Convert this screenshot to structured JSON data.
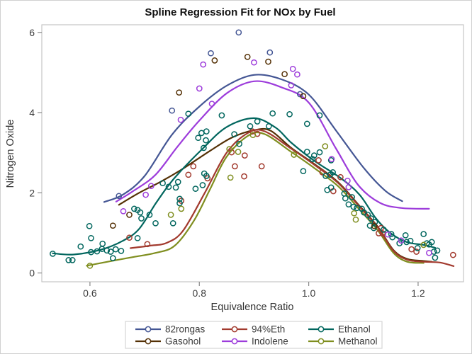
{
  "title": "Spline Regression Fit for NOx by Fuel",
  "x_axis": {
    "label": "Equivalence Ratio",
    "tick_labels": [
      "0.6",
      "0.8",
      "1.0",
      "1.2"
    ],
    "tick_values": [
      0.6,
      0.8,
      1.0,
      1.2
    ],
    "range": [
      0.512,
      1.283
    ]
  },
  "y_axis": {
    "label": "Nitrogen Oxide",
    "tick_labels": [
      "0",
      "2",
      "4",
      "6"
    ],
    "tick_values": [
      0,
      2,
      4,
      6
    ],
    "range": [
      -0.22,
      6.19
    ]
  },
  "legend": {
    "position": "bottom-center",
    "rows": 2,
    "columns": 3,
    "entries": [
      "82rongas",
      "94%Eth",
      "Ethanol",
      "Gasohol",
      "Indolene",
      "Methanol"
    ]
  },
  "colors": {
    "background": "#ffffff",
    "frame": "#c6c6c6",
    "tick": "#8a8a8a",
    "tick_text": "#3c3c3c",
    "axis_label_text": "#333333",
    "title_text": "#111111",
    "legend_border": "#d6d6d6"
  },
  "chart_data": {
    "type": "scatter",
    "subtype": "scatter-with-spline-fit",
    "title": "Spline Regression Fit for NOx by Fuel",
    "xlabel": "Equivalence Ratio",
    "ylabel": "Nitrogen Oxide",
    "xlim": [
      0.512,
      1.283
    ],
    "ylim": [
      -0.22,
      6.19
    ],
    "grid": false,
    "legend_position": "bottom",
    "series": [
      {
        "name": "82rongas",
        "color": "#445694",
        "points": [
          [
            0.653,
            1.92
          ],
          [
            0.75,
            4.05
          ],
          [
            0.821,
            5.48
          ],
          [
            0.872,
            6.0
          ],
          [
            0.929,
            5.5
          ],
          [
            0.984,
            4.46
          ]
        ],
        "fit": [
          [
            0.626,
            1.77
          ],
          [
            0.66,
            1.95
          ],
          [
            0.7,
            2.42
          ],
          [
            0.75,
            3.45
          ],
          [
            0.8,
            4.15
          ],
          [
            0.85,
            4.67
          ],
          [
            0.9,
            4.94
          ],
          [
            0.95,
            4.83
          ],
          [
            1.0,
            4.45
          ],
          [
            1.05,
            3.55
          ],
          [
            1.1,
            2.63
          ],
          [
            1.14,
            2.05
          ],
          [
            1.171,
            1.79
          ]
        ]
      },
      {
        "name": "94%Eth",
        "color": "#A23A2E",
        "points": [
          [
            0.672,
            0.88
          ],
          [
            0.705,
            0.72
          ],
          [
            0.767,
            1.8
          ],
          [
            0.78,
            2.45
          ],
          [
            0.789,
            2.66
          ],
          [
            0.815,
            2.36
          ],
          [
            0.859,
            3.01
          ],
          [
            0.865,
            2.66
          ],
          [
            0.882,
            2.41
          ],
          [
            0.883,
            2.93
          ],
          [
            0.897,
            3.53
          ],
          [
            0.906,
            3.47
          ],
          [
            0.914,
            2.66
          ],
          [
            1.018,
            2.81
          ],
          [
            1.025,
            2.51
          ],
          [
            1.045,
            2.04
          ],
          [
            1.058,
            2.39
          ],
          [
            1.128,
            0.99
          ],
          [
            1.132,
            1.12
          ],
          [
            1.135,
            0.99
          ],
          [
            1.188,
            0.59
          ],
          [
            1.197,
            0.53
          ],
          [
            1.264,
            0.45
          ]
        ],
        "fit": [
          [
            0.674,
            0.62
          ],
          [
            0.71,
            0.68
          ],
          [
            0.74,
            0.75
          ],
          [
            0.77,
            1.05
          ],
          [
            0.81,
            2.0
          ],
          [
            0.85,
            3.0
          ],
          [
            0.89,
            3.5
          ],
          [
            0.92,
            3.53
          ],
          [
            0.968,
            3.1
          ],
          [
            1.01,
            2.7
          ],
          [
            1.054,
            2.24
          ],
          [
            1.093,
            1.65
          ],
          [
            1.127,
            1.12
          ],
          [
            1.155,
            0.55
          ],
          [
            1.18,
            0.33
          ],
          [
            1.21,
            0.28
          ],
          [
            1.24,
            0.26
          ],
          [
            1.265,
            0.17
          ]
        ]
      },
      {
        "name": "Ethanol",
        "color": "#01665E",
        "points": [
          [
            0.532,
            0.48
          ],
          [
            0.561,
            0.32
          ],
          [
            0.568,
            0.32
          ],
          [
            0.583,
            0.66
          ],
          [
            0.599,
            1.17
          ],
          [
            0.602,
            0.52
          ],
          [
            0.602,
            0.87
          ],
          [
            0.613,
            0.54
          ],
          [
            0.622,
            0.6
          ],
          [
            0.623,
            0.73
          ],
          [
            0.631,
            0.56
          ],
          [
            0.638,
            0.53
          ],
          [
            0.642,
            0.37
          ],
          [
            0.647,
            0.59
          ],
          [
            0.657,
            0.55
          ],
          [
            0.681,
            1.6
          ],
          [
            0.687,
            0.87
          ],
          [
            0.687,
            1.57
          ],
          [
            0.692,
            1.51
          ],
          [
            0.694,
            1.36
          ],
          [
            0.709,
            1.45
          ],
          [
            0.72,
            1.24
          ],
          [
            0.733,
            2.24
          ],
          [
            0.744,
            2.15
          ],
          [
            0.752,
            1.24
          ],
          [
            0.757,
            2.13
          ],
          [
            0.761,
            2.27
          ],
          [
            0.764,
            1.74
          ],
          [
            0.764,
            1.85
          ],
          [
            0.78,
            3.97
          ],
          [
            0.793,
            2.1
          ],
          [
            0.798,
            3.37
          ],
          [
            0.804,
            3.49
          ],
          [
            0.806,
            2.19
          ],
          [
            0.808,
            3.12
          ],
          [
            0.809,
            2.48
          ],
          [
            0.812,
            3.31
          ],
          [
            0.813,
            2.42
          ],
          [
            0.813,
            3.53
          ],
          [
            0.841,
            3.93
          ],
          [
            0.864,
            3.46
          ],
          [
            0.873,
            3.22
          ],
          [
            0.893,
            3.66
          ],
          [
            0.906,
            3.78
          ],
          [
            0.927,
            3.66
          ],
          [
            0.934,
            3.98
          ],
          [
            0.965,
            3.96
          ],
          [
            0.99,
            2.54
          ],
          [
            0.997,
            3.02
          ],
          [
            0.997,
            3.72
          ],
          [
            1.007,
            2.84
          ],
          [
            1.01,
            2.93
          ],
          [
            1.02,
            3.01
          ],
          [
            1.02,
            3.93
          ],
          [
            1.031,
            2.42
          ],
          [
            1.034,
            2.07
          ],
          [
            1.039,
            2.45
          ],
          [
            1.041,
            2.13
          ],
          [
            1.041,
            2.81
          ],
          [
            1.044,
            2.51
          ],
          [
            1.065,
            1.98
          ],
          [
            1.067,
            1.86
          ],
          [
            1.073,
            1.71
          ],
          [
            1.079,
            1.89
          ],
          [
            1.082,
            1.65
          ],
          [
            1.088,
            1.62
          ],
          [
            1.097,
            1.6
          ],
          [
            1.101,
            1.51
          ],
          [
            1.108,
            1.45
          ],
          [
            1.112,
            1.18
          ],
          [
            1.114,
            1.36
          ],
          [
            1.119,
            1.12
          ],
          [
            1.121,
            1.27
          ],
          [
            1.137,
            1.08
          ],
          [
            1.151,
            0.97
          ],
          [
            1.153,
            0.89
          ],
          [
            1.166,
            0.74
          ],
          [
            1.177,
            0.94
          ],
          [
            1.179,
            0.77
          ],
          [
            1.186,
            0.8
          ],
          [
            1.199,
            0.62
          ],
          [
            1.21,
            0.97
          ],
          [
            1.216,
            0.74
          ],
          [
            1.22,
            0.71
          ],
          [
            1.225,
            0.77
          ],
          [
            1.229,
            0.53
          ],
          [
            1.231,
            0.38
          ],
          [
            1.235,
            0.56
          ]
        ],
        "fit": [
          [
            0.532,
            0.49
          ],
          [
            0.57,
            0.46
          ],
          [
            0.62,
            0.58
          ],
          [
            0.66,
            0.8
          ],
          [
            0.69,
            1.1
          ],
          [
            0.722,
            1.77
          ],
          [
            0.754,
            2.36
          ],
          [
            0.806,
            3.1
          ],
          [
            0.85,
            3.64
          ],
          [
            0.9,
            3.86
          ],
          [
            0.94,
            3.62
          ],
          [
            0.968,
            3.25
          ],
          [
            1.01,
            2.8
          ],
          [
            1.059,
            2.36
          ],
          [
            1.093,
            1.95
          ],
          [
            1.123,
            1.36
          ],
          [
            1.149,
            1.0
          ],
          [
            1.179,
            0.77
          ],
          [
            1.21,
            0.7
          ],
          [
            1.231,
            0.63
          ]
        ]
      },
      {
        "name": "Gasohol",
        "color": "#543005",
        "points": [
          [
            0.642,
            1.18
          ],
          [
            0.672,
            1.45
          ],
          [
            0.763,
            4.5
          ],
          [
            0.828,
            5.3
          ],
          [
            0.888,
            5.39
          ],
          [
            0.926,
            5.27
          ],
          [
            0.956,
            4.96
          ],
          [
            0.99,
            4.41
          ],
          [
            1.12,
            1.17
          ]
        ],
        "fit": [
          [
            0.653,
            1.7
          ],
          [
            0.69,
            2.0
          ],
          [
            0.73,
            2.28
          ],
          [
            0.77,
            2.6
          ],
          [
            0.82,
            3.05
          ],
          [
            0.86,
            3.38
          ],
          [
            0.9,
            3.56
          ],
          [
            0.93,
            3.55
          ],
          [
            0.968,
            3.12
          ],
          [
            1.01,
            2.72
          ],
          [
            1.054,
            2.26
          ],
          [
            1.093,
            1.67
          ],
          [
            1.127,
            1.14
          ],
          [
            1.155,
            0.57
          ],
          [
            1.18,
            0.35
          ],
          [
            1.21,
            0.3
          ],
          [
            1.225,
            0.28
          ]
        ]
      },
      {
        "name": "Indolene",
        "color": "#9D3CDB",
        "points": [
          [
            0.661,
            1.54
          ],
          [
            0.702,
            1.95
          ],
          [
            0.712,
            2.17
          ],
          [
            0.766,
            3.82
          ],
          [
            0.8,
            4.6
          ],
          [
            0.807,
            5.2
          ],
          [
            0.823,
            4.22
          ],
          [
            0.9,
            5.25
          ],
          [
            0.968,
            4.68
          ],
          [
            0.971,
            5.09
          ],
          [
            0.979,
            4.95
          ],
          [
            1.042,
            2.84
          ],
          [
            1.071,
            2.3
          ],
          [
            1.073,
            2.14
          ],
          [
            1.145,
            0.96
          ],
          [
            1.169,
            0.81
          ],
          [
            1.22,
            0.5
          ]
        ],
        "fit": [
          [
            0.648,
            1.78
          ],
          [
            0.68,
            2.05
          ],
          [
            0.72,
            2.45
          ],
          [
            0.76,
            3.15
          ],
          [
            0.8,
            3.8
          ],
          [
            0.85,
            4.48
          ],
          [
            0.9,
            4.78
          ],
          [
            0.95,
            4.63
          ],
          [
            1.0,
            4.25
          ],
          [
            1.05,
            3.1
          ],
          [
            1.09,
            2.2
          ],
          [
            1.13,
            1.75
          ],
          [
            1.17,
            1.62
          ],
          [
            1.22,
            1.6
          ]
        ]
      },
      {
        "name": "Methanol",
        "color": "#7F8E1F",
        "points": [
          [
            0.6,
            0.18
          ],
          [
            0.748,
            1.45
          ],
          [
            0.767,
            1.6
          ],
          [
            0.855,
            3.09
          ],
          [
            0.857,
            2.38
          ],
          [
            0.871,
            3.02
          ],
          [
            0.898,
            3.44
          ],
          [
            0.973,
            2.95
          ],
          [
            1.03,
            3.16
          ],
          [
            1.083,
            1.49
          ],
          [
            1.086,
            1.33
          ],
          [
            1.21,
            0.7
          ]
        ],
        "fit": [
          [
            0.594,
            0.18
          ],
          [
            0.64,
            0.3
          ],
          [
            0.68,
            0.4
          ],
          [
            0.72,
            0.5
          ],
          [
            0.755,
            0.68
          ],
          [
            0.79,
            1.3
          ],
          [
            0.82,
            2.1
          ],
          [
            0.85,
            2.9
          ],
          [
            0.89,
            3.43
          ],
          [
            0.92,
            3.46
          ],
          [
            0.968,
            3.02
          ],
          [
            1.01,
            2.62
          ],
          [
            1.054,
            2.16
          ],
          [
            1.093,
            1.58
          ],
          [
            1.127,
            1.05
          ],
          [
            1.155,
            0.5
          ],
          [
            1.18,
            0.28
          ],
          [
            1.21,
            0.25
          ]
        ]
      }
    ]
  }
}
